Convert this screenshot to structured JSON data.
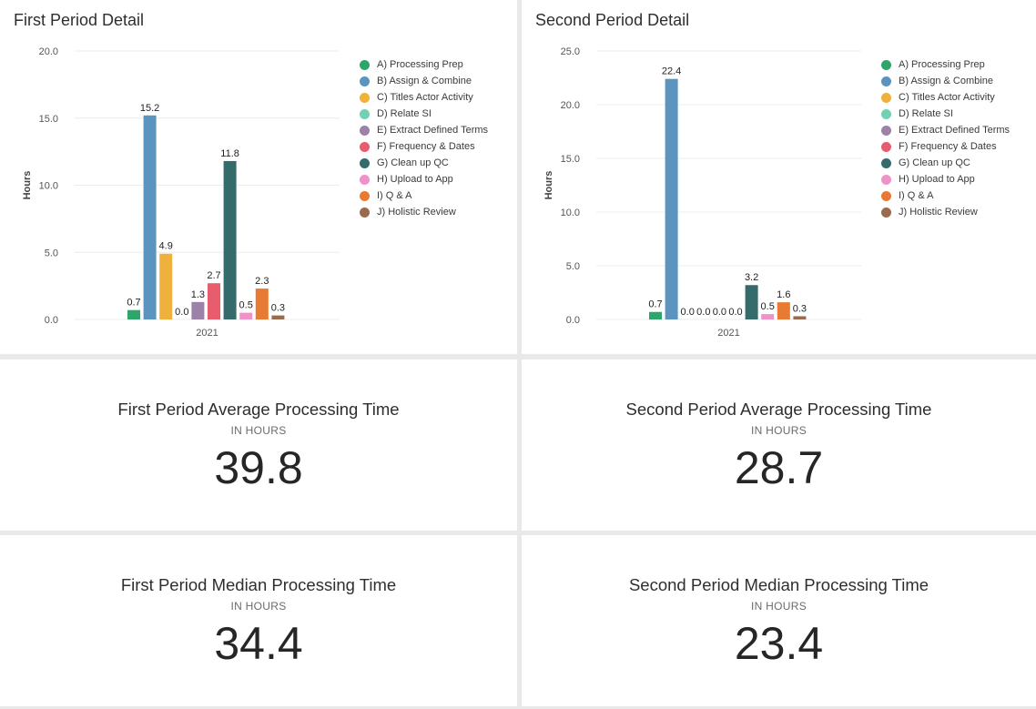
{
  "colors": {
    "A": "#2ea56a",
    "B": "#5b95bf",
    "C": "#f0b03c",
    "D": "#72d1b5",
    "E": "#9b82a6",
    "F": "#e85d6e",
    "G": "#366b6c",
    "H": "#ee93c8",
    "I": "#e87b33",
    "J": "#9b6b4f"
  },
  "legend_labels": [
    "A) Processing Prep",
    "B) Assign & Combine",
    "C) Titles Actor Activity",
    "D) Relate SI",
    "E) Extract Defined Terms",
    "F) Frequency & Dates",
    "G) Clean up QC",
    "H) Upload to App",
    "I) Q & A",
    "J) Holistic Review"
  ],
  "chart_data": [
    {
      "type": "bar",
      "title": "First Period Detail",
      "ylabel": "Hours",
      "categories": [
        "2021"
      ],
      "ylim": [
        0,
        20
      ],
      "yticks": [
        "0.0",
        "5.0",
        "10.0",
        "15.0",
        "20.0"
      ],
      "legend": "right",
      "series": [
        {
          "name": "A) Processing Prep",
          "values": [
            0.7
          ],
          "label": "0.7"
        },
        {
          "name": "B) Assign & Combine",
          "values": [
            15.2
          ],
          "label": "15.2"
        },
        {
          "name": "C) Titles Actor Activity",
          "values": [
            4.9
          ],
          "label": "4.9"
        },
        {
          "name": "D) Relate SI",
          "values": [
            0.0
          ],
          "label": "0.0"
        },
        {
          "name": "E) Extract Defined Terms",
          "values": [
            1.3
          ],
          "label": "1.3"
        },
        {
          "name": "F) Frequency & Dates",
          "values": [
            2.7
          ],
          "label": "2.7"
        },
        {
          "name": "G) Clean up QC",
          "values": [
            11.8
          ],
          "label": "11.8"
        },
        {
          "name": "H) Upload to App",
          "values": [
            0.5
          ],
          "label": "0.5"
        },
        {
          "name": "I) Q & A",
          "values": [
            2.3
          ],
          "label": "2.3"
        },
        {
          "name": "J) Holistic Review",
          "values": [
            0.3
          ],
          "label": "0.3"
        }
      ]
    },
    {
      "type": "bar",
      "title": "Second Period Detail",
      "ylabel": "Hours",
      "categories": [
        "2021"
      ],
      "ylim": [
        0,
        25
      ],
      "yticks": [
        "0.0",
        "5.0",
        "10.0",
        "15.0",
        "20.0",
        "25.0"
      ],
      "legend": "right",
      "series": [
        {
          "name": "A) Processing Prep",
          "values": [
            0.7
          ],
          "label": "0.7"
        },
        {
          "name": "B) Assign & Combine",
          "values": [
            22.4
          ],
          "label": "22.4"
        },
        {
          "name": "C) Titles Actor Activity",
          "values": [
            0.0
          ],
          "label": "0.0"
        },
        {
          "name": "D) Relate SI",
          "values": [
            0.0
          ],
          "label": "0.0"
        },
        {
          "name": "E) Extract Defined Terms",
          "values": [
            0.0
          ],
          "label": "0.0"
        },
        {
          "name": "F) Frequency & Dates",
          "values": [
            0.0
          ],
          "label": "0.0"
        },
        {
          "name": "G) Clean up QC",
          "values": [
            3.2
          ],
          "label": "3.2"
        },
        {
          "name": "H) Upload to App",
          "values": [
            0.5
          ],
          "label": "0.5"
        },
        {
          "name": "I) Q & A",
          "values": [
            1.6
          ],
          "label": "1.6"
        },
        {
          "name": "J) Holistic Review",
          "values": [
            0.3
          ],
          "label": "0.3"
        }
      ]
    }
  ],
  "kpis": {
    "first_avg": {
      "title": "First Period Average Processing Time",
      "subtitle": "IN HOURS",
      "value": "39.8"
    },
    "second_avg": {
      "title": "Second Period Average Processing Time",
      "subtitle": "IN HOURS",
      "value": "28.7"
    },
    "first_median": {
      "title": "First Period Median Processing Time",
      "subtitle": "IN HOURS",
      "value": "34.4"
    },
    "second_median": {
      "title": "Second Period Median Processing Time",
      "subtitle": "IN HOURS",
      "value": "23.4"
    }
  }
}
